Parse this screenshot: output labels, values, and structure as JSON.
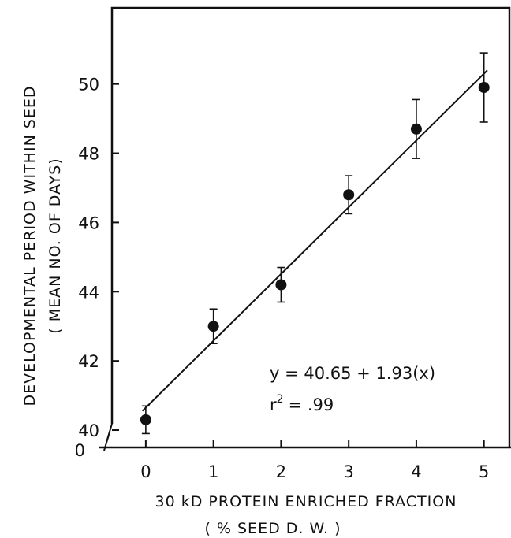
{
  "chart_data": {
    "type": "scatter",
    "x": [
      0,
      1,
      2,
      3,
      4,
      5
    ],
    "y": [
      40.3,
      43.0,
      44.2,
      46.8,
      48.7,
      49.9
    ],
    "error": [
      0.4,
      0.5,
      0.5,
      0.55,
      0.85,
      1.0
    ],
    "fit": {
      "intercept": 40.65,
      "slope": 1.93
    },
    "xlim": [
      -0.5,
      5.4
    ],
    "ylim": [
      39.5,
      52.2
    ],
    "xticks": [
      "0",
      "1",
      "2",
      "3",
      "4",
      "5"
    ],
    "yticks": [
      "40",
      "42",
      "44",
      "46",
      "48",
      "50"
    ],
    "y_zero_label": "0",
    "xlabel": "30 kD PROTEIN ENRICHED FRACTION",
    "xlabel_sub": "( % SEED D. W. )",
    "ylabel": "DEVELOPMENTAL PERIOD WITHIN SEED",
    "ylabel_sub": "( MEAN NO. OF DAYS)",
    "equation": "y = 40.65 + 1.93(x)",
    "r2_text": "= .99"
  }
}
